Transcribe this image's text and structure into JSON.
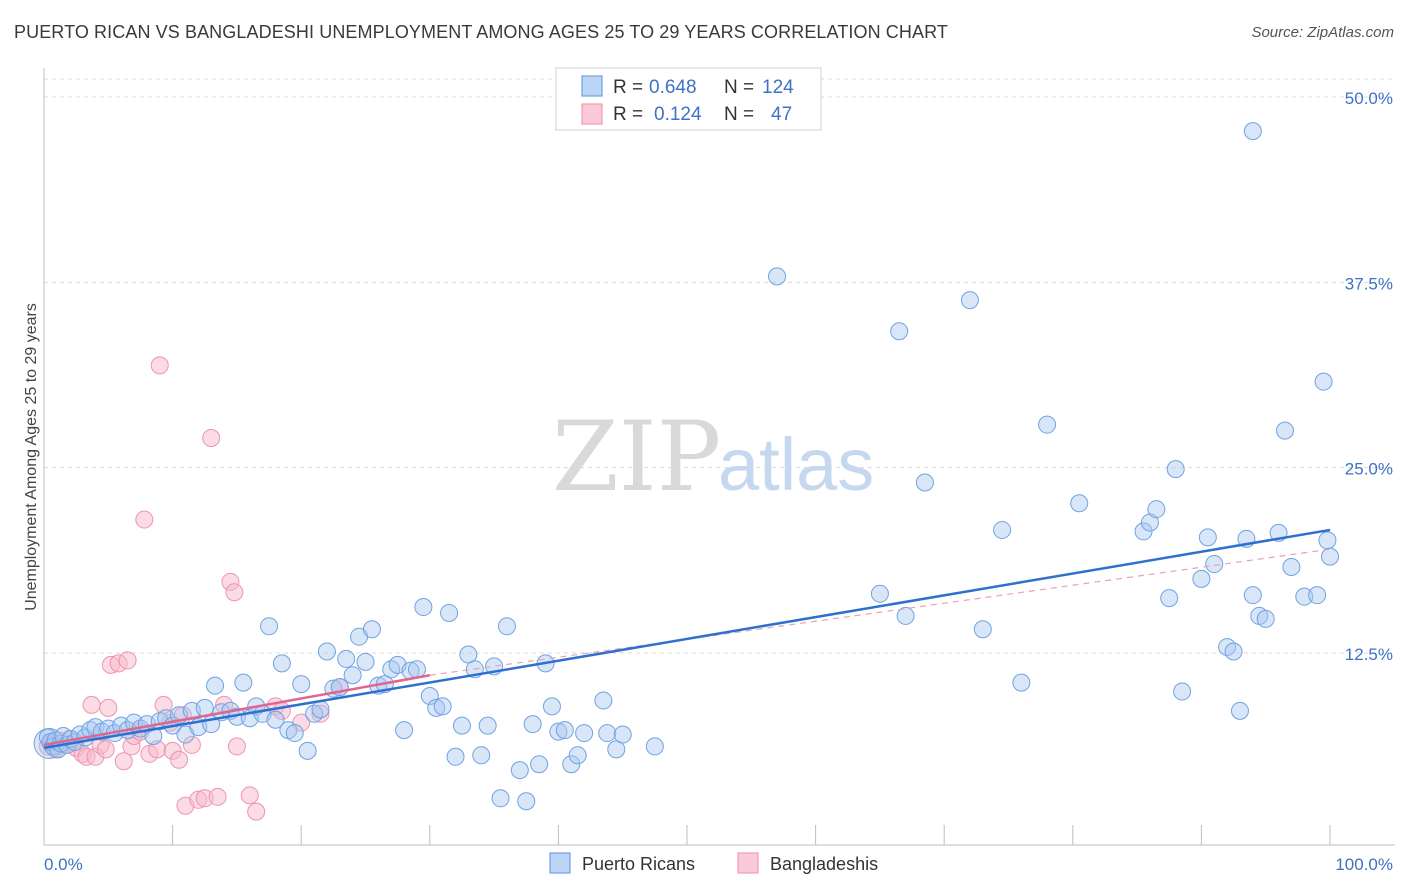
{
  "title": "PUERTO RICAN VS BANGLADESHI UNEMPLOYMENT AMONG AGES 25 TO 29 YEARS CORRELATION CHART",
  "source": "Source: ZipAtlas.com",
  "watermark": {
    "zip": "ZIP",
    "atlas": "atlas"
  },
  "colors": {
    "blue": "#6fa3e3",
    "blue_line": "#2f6fd0",
    "pink": "#f29ab5",
    "pink_line": "#e0668f",
    "tick_text": "#3d72c4"
  },
  "legend": {
    "rows": [
      {
        "r_label": "R =",
        "r_value": "0.648",
        "n_label": "N =",
        "n_value": "124"
      },
      {
        "r_label": "R =",
        "r_value": "0.124",
        "n_label": "N =",
        "n_value": "47"
      }
    ]
  },
  "bottom_legend": [
    "Puerto Ricans",
    "Bangladeshis"
  ],
  "chart_data": {
    "type": "scatter",
    "title": "PUERTO RICAN VS BANGLADESHI UNEMPLOYMENT AMONG AGES 25 TO 29 YEARS CORRELATION CHART",
    "xlabel": "",
    "ylabel": "Unemployment Among Ages 25 to 29 years",
    "xlim": [
      0,
      100
    ],
    "ylim": [
      0,
      52
    ],
    "x_tick_labels": [
      "0.0%",
      "100.0%"
    ],
    "y_ticks": [
      12.5,
      25.0,
      37.5,
      50.0
    ],
    "y_tick_labels": [
      "12.5%",
      "25.0%",
      "37.5%",
      "50.0%"
    ],
    "grid": true,
    "legend_position": "top-center",
    "series": [
      {
        "name": "Puerto Ricans",
        "r": 0.648,
        "n": 124,
        "trend": {
          "x": [
            0,
            100
          ],
          "y": [
            6.1,
            20.8
          ],
          "style": "solid"
        },
        "points": [
          [
            0.3,
            6.8
          ],
          [
            0.5,
            6.5
          ],
          [
            0.7,
            6.2
          ],
          [
            0.9,
            6.6
          ],
          [
            1.1,
            6.0
          ],
          [
            1.3,
            6.4
          ],
          [
            1.5,
            6.9
          ],
          [
            1.8,
            6.3
          ],
          [
            2.1,
            6.7
          ],
          [
            2.4,
            6.5
          ],
          [
            2.8,
            7.0
          ],
          [
            3.2,
            6.8
          ],
          [
            3.6,
            7.3
          ],
          [
            4.0,
            7.5
          ],
          [
            4.5,
            7.2
          ],
          [
            5.0,
            7.4
          ],
          [
            5.5,
            7.1
          ],
          [
            6.0,
            7.6
          ],
          [
            6.5,
            7.3
          ],
          [
            7.0,
            7.8
          ],
          [
            7.5,
            7.4
          ],
          [
            8.0,
            7.7
          ],
          [
            8.5,
            6.9
          ],
          [
            9.0,
            7.9
          ],
          [
            9.5,
            8.1
          ],
          [
            10.0,
            7.6
          ],
          [
            10.5,
            8.3
          ],
          [
            11.0,
            7.0
          ],
          [
            11.5,
            8.6
          ],
          [
            12.0,
            7.5
          ],
          [
            12.5,
            8.8
          ],
          [
            13.0,
            7.7
          ],
          [
            13.3,
            10.3
          ],
          [
            13.8,
            8.5
          ],
          [
            14.5,
            8.6
          ],
          [
            15.0,
            8.2
          ],
          [
            15.5,
            10.5
          ],
          [
            16.0,
            8.1
          ],
          [
            16.5,
            8.9
          ],
          [
            17.0,
            8.4
          ],
          [
            17.5,
            14.3
          ],
          [
            18.0,
            8.0
          ],
          [
            18.5,
            11.8
          ],
          [
            19.0,
            7.3
          ],
          [
            19.5,
            7.1
          ],
          [
            20.0,
            10.4
          ],
          [
            20.5,
            5.9
          ],
          [
            21.0,
            8.4
          ],
          [
            21.5,
            8.7
          ],
          [
            22.0,
            12.6
          ],
          [
            22.5,
            10.1
          ],
          [
            23.0,
            10.2
          ],
          [
            23.5,
            12.1
          ],
          [
            24.0,
            11.0
          ],
          [
            24.5,
            13.6
          ],
          [
            25.0,
            11.9
          ],
          [
            25.5,
            14.1
          ],
          [
            26.0,
            10.3
          ],
          [
            26.5,
            10.4
          ],
          [
            27.0,
            11.4
          ],
          [
            27.5,
            11.7
          ],
          [
            28.0,
            7.3
          ],
          [
            28.5,
            11.3
          ],
          [
            29.0,
            11.4
          ],
          [
            29.5,
            15.6
          ],
          [
            30.0,
            9.6
          ],
          [
            30.5,
            8.8
          ],
          [
            31.0,
            8.9
          ],
          [
            31.5,
            15.2
          ],
          [
            32.0,
            5.5
          ],
          [
            32.5,
            7.6
          ],
          [
            33.0,
            12.4
          ],
          [
            33.5,
            11.4
          ],
          [
            34.0,
            5.6
          ],
          [
            34.5,
            7.6
          ],
          [
            35.0,
            11.6
          ],
          [
            35.5,
            2.7
          ],
          [
            36.0,
            14.3
          ],
          [
            37.0,
            4.6
          ],
          [
            37.5,
            2.5
          ],
          [
            38.0,
            7.7
          ],
          [
            38.5,
            5.0
          ],
          [
            39.0,
            11.8
          ],
          [
            39.5,
            8.9
          ],
          [
            40.0,
            7.2
          ],
          [
            40.5,
            7.3
          ],
          [
            41.0,
            5.0
          ],
          [
            41.5,
            5.6
          ],
          [
            42.0,
            7.1
          ],
          [
            43.5,
            9.3
          ],
          [
            43.8,
            7.1
          ],
          [
            44.5,
            6.0
          ],
          [
            45.0,
            7.0
          ],
          [
            47.5,
            6.2
          ],
          [
            57.0,
            37.9
          ],
          [
            65.0,
            16.5
          ],
          [
            66.5,
            34.2
          ],
          [
            67.0,
            15.0
          ],
          [
            68.5,
            24.0
          ],
          [
            72.0,
            36.3
          ],
          [
            73.0,
            14.1
          ],
          [
            74.5,
            20.8
          ],
          [
            76.0,
            10.5
          ],
          [
            78.0,
            27.9
          ],
          [
            80.5,
            22.6
          ],
          [
            85.5,
            20.7
          ],
          [
            86.0,
            21.3
          ],
          [
            86.5,
            22.2
          ],
          [
            87.5,
            16.2
          ],
          [
            88.0,
            24.9
          ],
          [
            88.5,
            9.9
          ],
          [
            90.0,
            17.5
          ],
          [
            90.5,
            20.3
          ],
          [
            91.0,
            18.5
          ],
          [
            92.0,
            12.9
          ],
          [
            92.5,
            12.6
          ],
          [
            93.0,
            8.6
          ],
          [
            93.5,
            20.2
          ],
          [
            94.0,
            16.4
          ],
          [
            94.5,
            15.0
          ],
          [
            95.0,
            14.8
          ],
          [
            96.0,
            20.6
          ],
          [
            96.5,
            27.5
          ],
          [
            97.0,
            18.3
          ],
          [
            98.0,
            16.3
          ],
          [
            99.0,
            16.4
          ],
          [
            94.0,
            47.7
          ],
          [
            99.5,
            30.8
          ],
          [
            99.8,
            20.1
          ],
          [
            100.0,
            19.0
          ]
        ]
      },
      {
        "name": "Bangladeshis",
        "r": 0.124,
        "n": 47,
        "trend": {
          "x": [
            0,
            30
          ],
          "y": [
            6.3,
            11.0
          ],
          "style": "solid"
        },
        "trend_extended": {
          "x": [
            30,
            100
          ],
          "y": [
            11.0,
            19.5
          ],
          "style": "dashed"
        },
        "points": [
          [
            0.3,
            6.2
          ],
          [
            0.6,
            6.5
          ],
          [
            0.9,
            6.0
          ],
          [
            1.2,
            6.6
          ],
          [
            1.6,
            6.3
          ],
          [
            2.0,
            6.7
          ],
          [
            2.5,
            6.1
          ],
          [
            3.0,
            5.7
          ],
          [
            3.3,
            5.5
          ],
          [
            3.7,
            9.0
          ],
          [
            4.0,
            5.5
          ],
          [
            4.4,
            6.3
          ],
          [
            4.8,
            6.0
          ],
          [
            5.0,
            8.8
          ],
          [
            5.2,
            11.7
          ],
          [
            5.8,
            11.8
          ],
          [
            6.2,
            5.2
          ],
          [
            6.5,
            12.0
          ],
          [
            6.8,
            6.2
          ],
          [
            7.0,
            6.9
          ],
          [
            7.5,
            7.2
          ],
          [
            7.8,
            21.5
          ],
          [
            8.2,
            5.7
          ],
          [
            8.8,
            6.0
          ],
          [
            9.0,
            31.9
          ],
          [
            9.3,
            9.0
          ],
          [
            9.8,
            7.8
          ],
          [
            10.0,
            5.9
          ],
          [
            10.5,
            5.3
          ],
          [
            10.8,
            8.3
          ],
          [
            11.0,
            2.2
          ],
          [
            11.5,
            6.3
          ],
          [
            12.0,
            2.6
          ],
          [
            12.5,
            2.7
          ],
          [
            13.0,
            27.0
          ],
          [
            13.5,
            2.8
          ],
          [
            14.0,
            9.0
          ],
          [
            14.5,
            17.3
          ],
          [
            14.8,
            16.6
          ],
          [
            15.0,
            6.2
          ],
          [
            16.0,
            2.9
          ],
          [
            16.5,
            1.8
          ],
          [
            18.0,
            8.9
          ],
          [
            18.5,
            8.6
          ],
          [
            20.0,
            7.8
          ],
          [
            21.5,
            8.4
          ],
          [
            23.0,
            10.2
          ]
        ]
      }
    ]
  }
}
